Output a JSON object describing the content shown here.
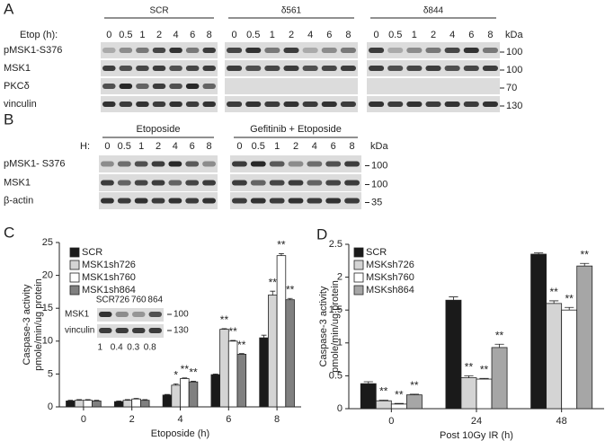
{
  "blot_a": {
    "label": "A",
    "time_label": "Etop (h):",
    "groups": [
      {
        "name": "SCR",
        "times": [
          0,
          0.5,
          1,
          2,
          4,
          6,
          8
        ]
      },
      {
        "name": "δ561",
        "times": [
          0,
          0.5,
          1,
          2,
          4,
          6,
          8
        ]
      },
      {
        "name": "δ844",
        "times": [
          0,
          0.5,
          1,
          2,
          4,
          6,
          8
        ]
      }
    ],
    "kda": "kDa",
    "rows": [
      {
        "name": "pMSK1-S376",
        "mw": 100
      },
      {
        "name": "MSK1",
        "mw": 100
      },
      {
        "name": "PKCδ",
        "mw": 70
      },
      {
        "name": "vinculin",
        "mw": 130
      }
    ]
  },
  "blot_b": {
    "label": "B",
    "time_label": "H:",
    "groups": [
      {
        "name": "Etoposide",
        "times": [
          0,
          0.5,
          1,
          2,
          4,
          6,
          8
        ]
      },
      {
        "name": "Gefitinib + Etoposide",
        "times": [
          0,
          0.5,
          1,
          2,
          4,
          6,
          8
        ]
      }
    ],
    "kda": "kDa",
    "rows": [
      {
        "name": "pMSK1- S376",
        "mw": 100
      },
      {
        "name": "MSK1",
        "mw": 100
      },
      {
        "name": "β-actin",
        "mw": 35
      }
    ]
  },
  "chart_data": [
    {
      "type": "bar",
      "label": "C",
      "xlabel": "Etoposide (h)",
      "ylabel": [
        "Caspase-3 activity",
        "pmole/min/ug protein"
      ],
      "categories": [
        0,
        2,
        4,
        6,
        8
      ],
      "ylim": [
        0,
        25
      ],
      "yticks": [
        0,
        5,
        10,
        15,
        20,
        25
      ],
      "series": [
        {
          "name": "SCR",
          "color": "#1a1a1a",
          "values": [
            0.9,
            0.8,
            1.8,
            4.9,
            10.5
          ],
          "errors": [
            0.1,
            0.1,
            0.1,
            0.1,
            0.4
          ],
          "significance": [
            null,
            null,
            null,
            null,
            null
          ]
        },
        {
          "name": "MSK1sh726",
          "color": "#d4d4d4",
          "values": [
            1.0,
            1.0,
            3.3,
            11.8,
            17.0
          ],
          "errors": [
            0.1,
            0.1,
            0.2,
            0.1,
            0.6
          ],
          "significance": [
            null,
            null,
            "*",
            "**",
            "**"
          ]
        },
        {
          "name": "MSK1sh760",
          "color": "#ffffff",
          "values": [
            1.0,
            1.2,
            4.3,
            10.0,
            23.0
          ],
          "errors": [
            0.1,
            0.1,
            0.1,
            0.1,
            0.3
          ],
          "significance": [
            null,
            null,
            "**",
            "**",
            "**"
          ]
        },
        {
          "name": "MSK1sh864",
          "color": "#808080",
          "values": [
            0.9,
            1.0,
            3.8,
            8.0,
            16.3
          ],
          "errors": [
            0.1,
            0.1,
            0.1,
            0.1,
            0.2
          ],
          "significance": [
            null,
            null,
            "**",
            "**",
            "**"
          ]
        }
      ],
      "inset": {
        "header": [
          "SCR",
          726,
          760,
          864
        ],
        "rows": [
          {
            "name": "MSK1",
            "mw": 100
          },
          {
            "name": "vinculin",
            "mw": 130
          }
        ],
        "ratios": [
          1,
          0.4,
          0.3,
          0.8
        ]
      }
    },
    {
      "type": "bar",
      "label": "D",
      "xlabel": "Post 10Gy IR (h)",
      "ylabel": [
        "Caspase-3 activity",
        "pmole/min/ug protein"
      ],
      "categories": [
        0,
        24,
        48
      ],
      "ylim": [
        0,
        2.5
      ],
      "yticks": [
        0,
        0.5,
        1,
        1.5,
        2,
        2.5
      ],
      "series": [
        {
          "name": "SCR",
          "color": "#1a1a1a",
          "values": [
            0.38,
            1.65,
            2.35
          ],
          "errors": [
            0.03,
            0.05,
            0.02
          ],
          "significance": [
            null,
            null,
            null
          ]
        },
        {
          "name": "MSKsh726",
          "color": "#d4d4d4",
          "values": [
            0.12,
            0.47,
            1.6
          ],
          "errors": [
            0.01,
            0.03,
            0.04
          ],
          "significance": [
            "**",
            "**",
            "**"
          ]
        },
        {
          "name": "MSKsh760",
          "color": "#ffffff",
          "values": [
            0.07,
            0.45,
            1.5
          ],
          "errors": [
            0.01,
            0.01,
            0.04
          ],
          "significance": [
            "**",
            "**",
            "**"
          ]
        },
        {
          "name": "MSKsh864",
          "color": "#a6a6a6",
          "values": [
            0.21,
            0.93,
            2.17
          ],
          "errors": [
            0.01,
            0.05,
            0.04
          ],
          "significance": [
            "**",
            "**",
            "**"
          ]
        }
      ]
    }
  ]
}
